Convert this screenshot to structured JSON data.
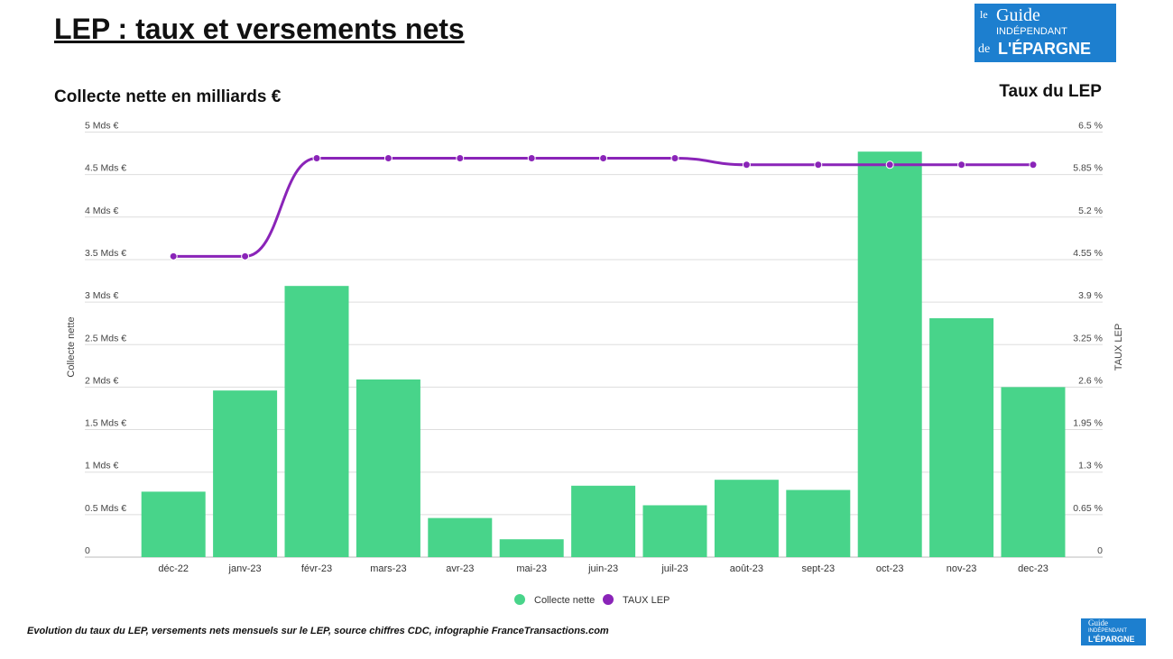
{
  "title": "LEP : taux et versements nets",
  "left_heading": "Collecte nette en milliards €",
  "right_heading": "Taux du LEP",
  "logo": {
    "line1": "le",
    "line2": "Guide",
    "line3": "INDÉPENDANT",
    "line4": "de",
    "line5": "L'ÉPARGNE"
  },
  "caption": "Evolution du taux du LEP, versements nets mensuels sur le LEP, source chiffres CDC, infographie FranceTransactions.com",
  "colors": {
    "bar": "#48d48a",
    "line": "#8a24b8"
  },
  "chart_data": {
    "type": "bar+line",
    "categories": [
      "déc-22",
      "janv-23",
      "févr-23",
      "mars-23",
      "avr-23",
      "mai-23",
      "juin-23",
      "juil-23",
      "août-23",
      "sept-23",
      "oct-23",
      "nov-23",
      "dec-23"
    ],
    "series": [
      {
        "name": "Collecte nette",
        "type": "bar",
        "axis": "left",
        "values": [
          0.77,
          1.96,
          3.19,
          2.09,
          0.46,
          0.21,
          0.84,
          0.61,
          0.91,
          0.79,
          4.77,
          2.81,
          2.0
        ]
      },
      {
        "name": "TAUX LEP",
        "type": "line",
        "axis": "right",
        "values": [
          4.6,
          4.6,
          6.1,
          6.1,
          6.1,
          6.1,
          6.1,
          6.1,
          6.0,
          6.0,
          6.0,
          6.0,
          6.0
        ]
      }
    ],
    "ylabel": "Collecte nette",
    "y2label": "TAUX LEP",
    "ylim": [
      0,
      5
    ],
    "y2lim": [
      0,
      6.5
    ],
    "yticks": [
      "0",
      "0.5 Mds €",
      "1 Mds €",
      "1.5 Mds €",
      "2 Mds €",
      "2.5 Mds €",
      "3 Mds €",
      "3.5 Mds €",
      "4 Mds €",
      "4.5 Mds €",
      "5 Mds €"
    ],
    "y2ticks": [
      "0",
      "0.65 %",
      "1.3 %",
      "1.95 %",
      "2.6 %",
      "3.25 %",
      "3.9 %",
      "4.55 %",
      "5.2 %",
      "5.85 %",
      "6.5 %"
    ],
    "grid": true,
    "legend": "bottom"
  }
}
